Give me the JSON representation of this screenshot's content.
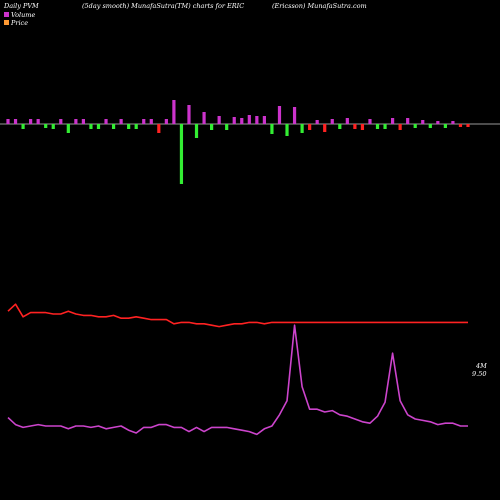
{
  "header": {
    "left": "Daily PVM",
    "center": "(5day smooth) MunafaSutra(TM) charts for ERIC",
    "right": "(Ericsson) MunafaSutra.com"
  },
  "legend": {
    "volume_label": "Volume",
    "price_label": "Price",
    "volume_color": "#cc33cc",
    "price_color": "#ff9933"
  },
  "colors": {
    "background": "#000000",
    "baseline": "#cccccc",
    "bar_up": "#cc33cc",
    "bar_down_green": "#33ee33",
    "bar_down_red": "#ff2222",
    "volume_line": "#cc44cc",
    "price_line": "#ff2222"
  },
  "chart_data": {
    "type": "line",
    "x": [
      1,
      2,
      3,
      4,
      5,
      6,
      7,
      8,
      9,
      10,
      11,
      12,
      13,
      14,
      15,
      16,
      17,
      18,
      19,
      20,
      21,
      22,
      23,
      24,
      25,
      26,
      27,
      28,
      29,
      30,
      31,
      32,
      33,
      34,
      35,
      36,
      37,
      38,
      39,
      40,
      41,
      42,
      43,
      44,
      45,
      46,
      47,
      48,
      49,
      50,
      51,
      52,
      53,
      54,
      55,
      56,
      57,
      58,
      59,
      60,
      61,
      62
    ],
    "series": [
      {
        "name": "Volume",
        "values": [
          0.16,
          0.11,
          0.09,
          0.1,
          0.11,
          0.1,
          0.1,
          0.1,
          0.08,
          0.1,
          0.1,
          0.09,
          0.1,
          0.08,
          0.09,
          0.1,
          0.07,
          0.05,
          0.09,
          0.09,
          0.11,
          0.11,
          0.09,
          0.09,
          0.06,
          0.09,
          0.06,
          0.09,
          0.09,
          0.09,
          0.08,
          0.07,
          0.06,
          0.04,
          0.08,
          0.1,
          0.18,
          0.28,
          0.82,
          0.38,
          0.22,
          0.22,
          0.2,
          0.21,
          0.18,
          0.17,
          0.15,
          0.13,
          0.12,
          0.17,
          0.27,
          0.62,
          0.28,
          0.18,
          0.15,
          0.14,
          0.13,
          0.11,
          0.12,
          0.12,
          0.1,
          0.1
        ]
      },
      {
        "name": "Price",
        "values": [
          0.92,
          0.97,
          0.88,
          0.91,
          0.91,
          0.91,
          0.9,
          0.9,
          0.92,
          0.9,
          0.89,
          0.89,
          0.88,
          0.88,
          0.89,
          0.87,
          0.87,
          0.88,
          0.87,
          0.86,
          0.86,
          0.86,
          0.83,
          0.84,
          0.84,
          0.83,
          0.83,
          0.82,
          0.81,
          0.82,
          0.83,
          0.83,
          0.84,
          0.84,
          0.83,
          0.84,
          0.84,
          0.84,
          0.84,
          0.84,
          0.84,
          0.84,
          0.84,
          0.84,
          0.84,
          0.84,
          0.84,
          0.84,
          0.84,
          0.84,
          0.84,
          0.84,
          0.84,
          0.84,
          0.84,
          0.84,
          0.84,
          0.84,
          0.84,
          0.84,
          0.84,
          0.84
        ]
      }
    ],
    "price_labels": [
      "4M",
      "9.50"
    ],
    "bars": [
      0.5,
      0.5,
      -0.5,
      0.5,
      0.5,
      -0.4,
      -0.5,
      0.5,
      -0.9,
      0.5,
      0.5,
      -0.5,
      -0.5,
      0.5,
      -0.5,
      0.5,
      -0.5,
      -0.5,
      0.5,
      0.5,
      -0.9,
      0.5,
      2.4,
      -6,
      1.9,
      -1.4,
      1.2,
      -0.6,
      0.8,
      -0.6,
      0.7,
      0.6,
      0.9,
      0.8,
      0.8,
      -1,
      1.8,
      -1.2,
      1.7,
      -0.9,
      -0.6,
      0.4,
      -0.8,
      0.5,
      -0.5,
      0.6,
      -0.5,
      -0.6,
      0.5,
      -0.5,
      -0.5,
      0.6,
      -0.6,
      0.6,
      -0.4,
      0.4,
      -0.4,
      0.3,
      -0.4,
      0.3,
      -0.3,
      -0.3
    ],
    "bar_colors": [
      "up",
      "up",
      "down_green",
      "up",
      "up",
      "down_green",
      "down_green",
      "up",
      "down_green",
      "up",
      "up",
      "down_green",
      "down_green",
      "up",
      "down_green",
      "up",
      "down_green",
      "down_green",
      "up",
      "up",
      "down_red",
      "up",
      "up",
      "down_green",
      "up",
      "down_green",
      "up",
      "down_green",
      "up",
      "down_green",
      "up",
      "up",
      "up",
      "up",
      "up",
      "down_green",
      "up",
      "down_green",
      "up",
      "down_green",
      "down_red",
      "up",
      "down_red",
      "up",
      "down_green",
      "up",
      "down_red",
      "down_red",
      "up",
      "down_green",
      "down_green",
      "up",
      "down_red",
      "up",
      "down_green",
      "up",
      "down_green",
      "up",
      "down_green",
      "up",
      "down_red",
      "down_red"
    ],
    "xlabel": "",
    "ylabel": ""
  }
}
